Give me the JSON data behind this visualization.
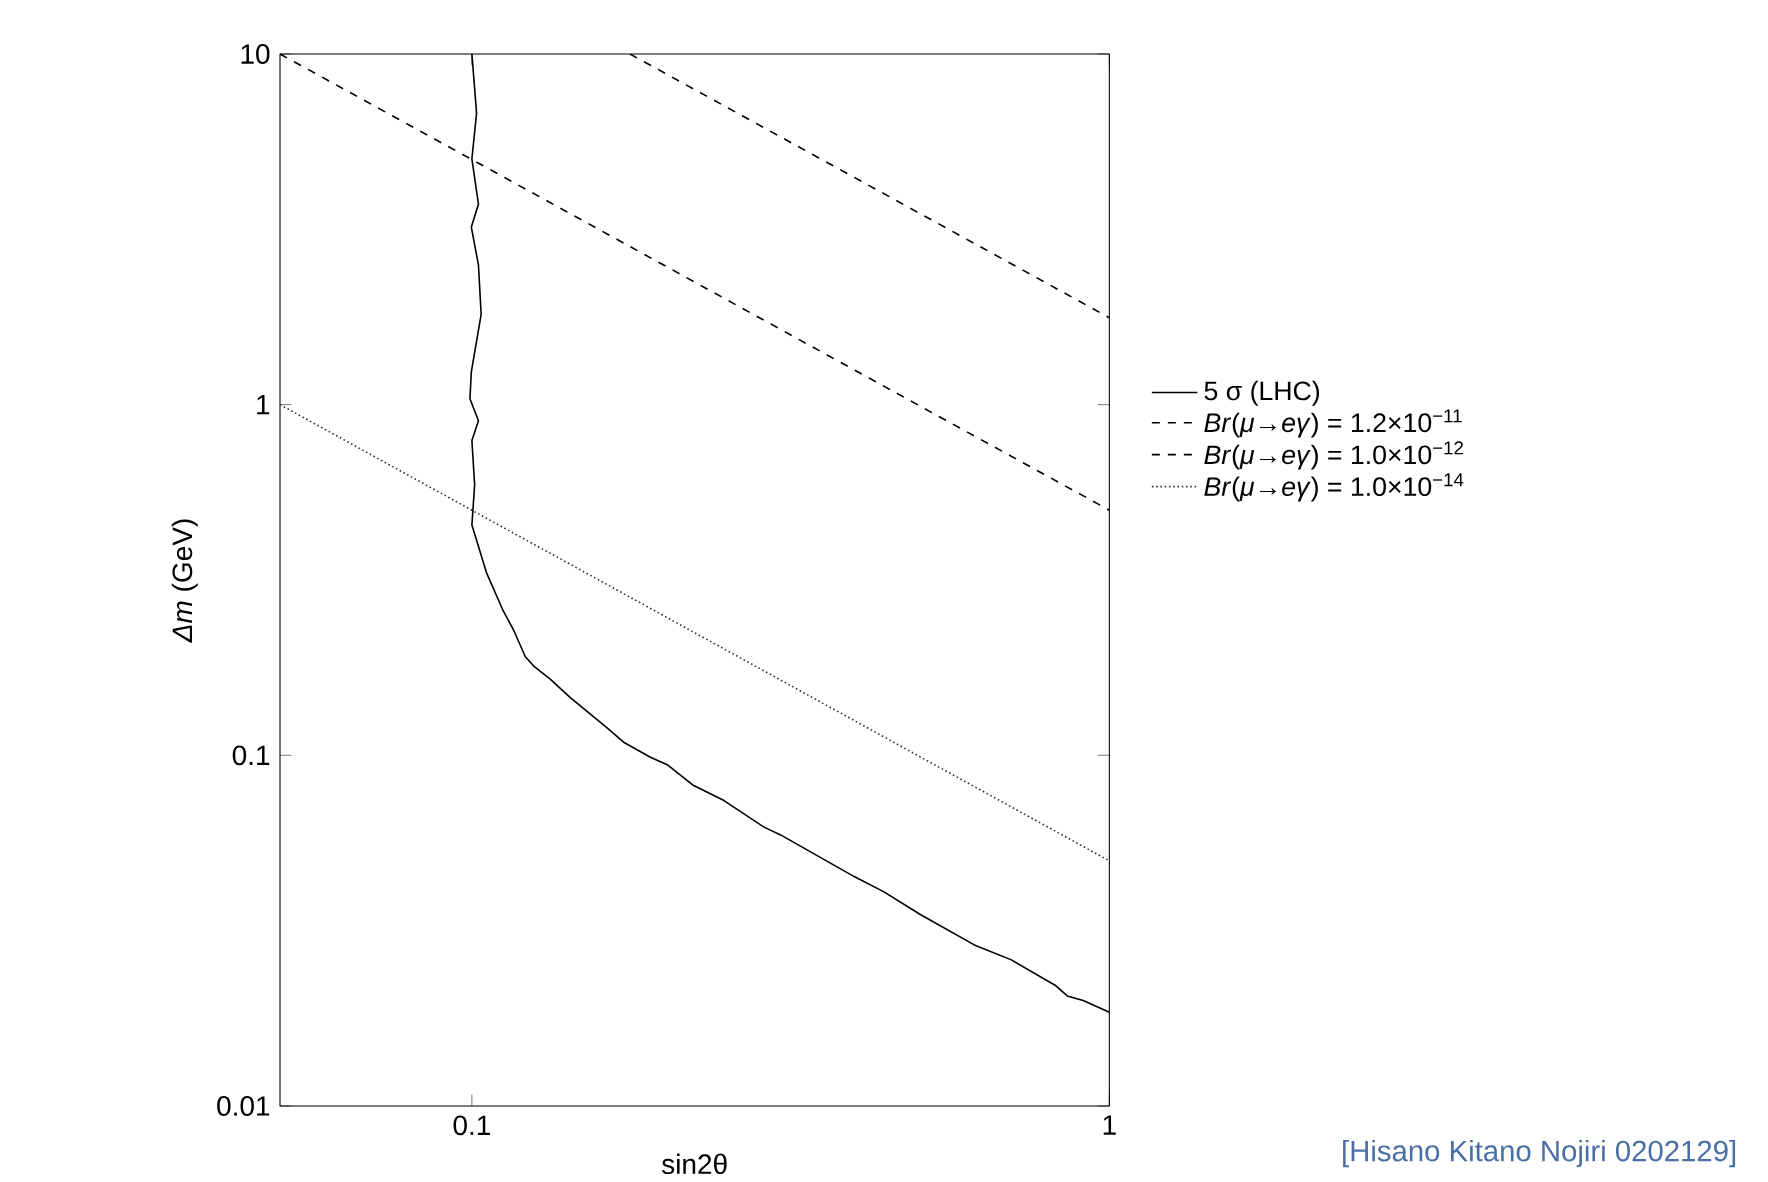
{
  "chart_data": {
    "type": "line",
    "xlabel": "sin2θ",
    "ylabel": "*Δm* (GeV)",
    "log": "xy",
    "xlim": [
      0.05,
      1
    ],
    "ylim": [
      0.01,
      10
    ],
    "xticks": [
      0.1,
      1
    ],
    "yticks": [
      0.01,
      0.1,
      1,
      10
    ],
    "legend": "right",
    "grid": false,
    "series": [
      {
        "name": "5 σ (LHC)",
        "color": "#000000",
        "line_style": "solid",
        "x": [
          0.1,
          0.1017,
          0.1,
          0.1024,
          0.0998,
          0.1024,
          0.1034,
          0.0998,
          0.0993,
          0.1024,
          0.1,
          0.101,
          0.1,
          0.1054,
          0.112,
          0.1162,
          0.1213,
          0.1249,
          0.1327,
          0.1427,
          0.1628,
          0.173,
          0.1906,
          0.2025,
          0.2228,
          0.2486,
          0.2873,
          0.305,
          0.398,
          0.443,
          0.506,
          0.614,
          0.702,
          0.822,
          0.859,
          0.91,
          1
        ],
        "values": [
          10,
          6.78,
          5.02,
          3.73,
          3.21,
          2.5,
          1.81,
          1.24,
          1.04,
          0.9,
          0.79,
          0.59,
          0.454,
          0.332,
          0.258,
          0.228,
          0.191,
          0.18,
          0.165,
          0.146,
          0.12,
          0.109,
          0.0987,
          0.094,
          0.082,
          0.0743,
          0.0624,
          0.0593,
          0.0451,
          0.0408,
          0.0351,
          0.0288,
          0.0261,
          0.0221,
          0.0206,
          0.02,
          0.0185
        ]
      },
      {
        "name": "*Br*(*μ*→*eγ*) = 1.2×10$^{−11}$",
        "color": "#000000",
        "line_style": "dashed",
        "x": [
          0.177,
          1
        ],
        "values": [
          10,
          1.77
        ]
      },
      {
        "name": "*Br*(*μ*→*eγ*) = 1.0×10$^{−12}$",
        "color": "#000000",
        "line_style": "dashed",
        "x": [
          0.05,
          1
        ],
        "values": [
          10,
          0.5
        ]
      },
      {
        "name": "*Br*(*μ*→*eγ*) = 1.0×10$^{−14}$",
        "color": "#333333",
        "line_style": "dotted",
        "x": [
          0.05,
          1
        ],
        "values": [
          1,
          0.05
        ]
      }
    ],
    "annotations": [
      "[Hisano Kitano Nojiri 0202129]"
    ]
  }
}
